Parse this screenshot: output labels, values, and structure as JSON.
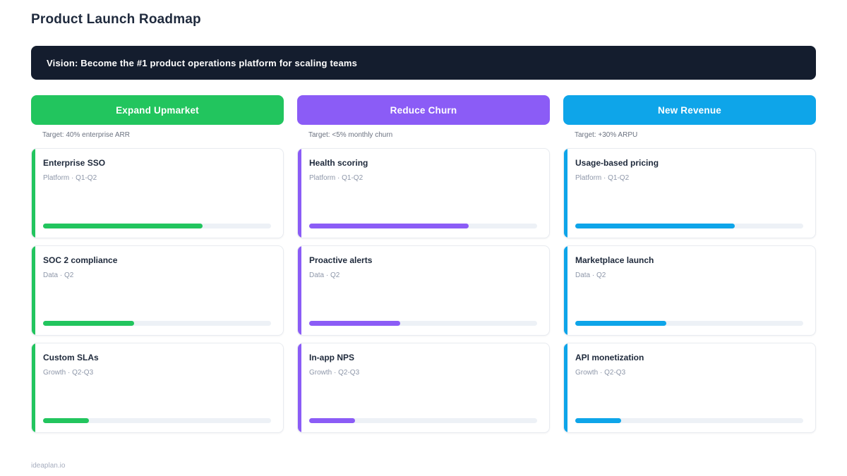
{
  "page": {
    "title": "Product Launch Roadmap",
    "vision": "Vision: Become the #1 product operations platform for scaling teams",
    "footer": "ideaplan.io"
  },
  "colors": {
    "banner_bg": "#141d2e",
    "green": "#22c55e",
    "purple": "#8b5cf6",
    "blue": "#0ea5e9",
    "progress_track": "#edf1f6"
  },
  "columns": [
    {
      "label": "Expand Upmarket",
      "target": "Target: 40% enterprise ARR",
      "color": "#22c55e",
      "cards": [
        {
          "title": "Enterprise SSO",
          "meta": "Platform · Q1-Q2",
          "progress": 70
        },
        {
          "title": "SOC 2 compliance",
          "meta": "Data · Q2",
          "progress": 40
        },
        {
          "title": "Custom SLAs",
          "meta": "Growth · Q2-Q3",
          "progress": 20
        }
      ]
    },
    {
      "label": "Reduce Churn",
      "target": "Target: <5% monthly churn",
      "color": "#8b5cf6",
      "cards": [
        {
          "title": "Health scoring",
          "meta": "Platform · Q1-Q2",
          "progress": 70
        },
        {
          "title": "Proactive alerts",
          "meta": "Data · Q2",
          "progress": 40
        },
        {
          "title": "In-app NPS",
          "meta": "Growth · Q2-Q3",
          "progress": 20
        }
      ]
    },
    {
      "label": "New Revenue",
      "target": "Target: +30% ARPU",
      "color": "#0ea5e9",
      "cards": [
        {
          "title": "Usage-based pricing",
          "meta": "Platform · Q1-Q2",
          "progress": 70
        },
        {
          "title": "Marketplace launch",
          "meta": "Data · Q2",
          "progress": 40
        },
        {
          "title": "API monetization",
          "meta": "Growth · Q2-Q3",
          "progress": 20
        }
      ]
    }
  ]
}
